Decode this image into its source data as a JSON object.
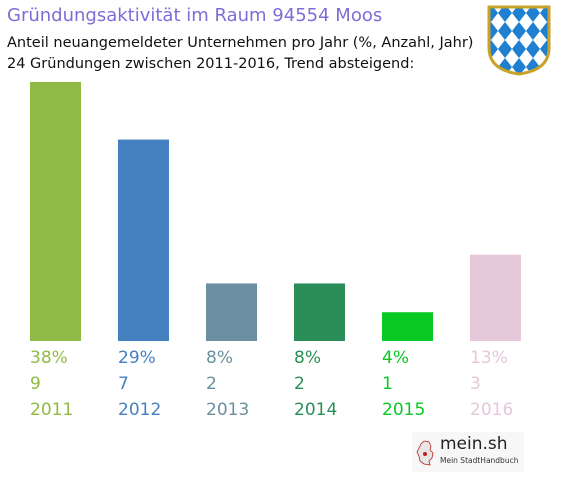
{
  "header": {
    "title": "Gründungsaktivität im Raum 94554 Moos",
    "subtitle_line1": "Anteil neuangemeldeter Unternehmen pro Jahr (%, Anzahl, Jahr)",
    "subtitle_line2": "24 Gründungen zwischen 2011-2016, Trend absteigend:"
  },
  "logo": {
    "name": "mein.sh",
    "tagline": "Mein StadtHandbuch"
  },
  "chart_data": {
    "type": "bar",
    "categories": [
      "2011",
      "2012",
      "2013",
      "2014",
      "2015",
      "2016"
    ],
    "percent_labels": [
      "38%",
      "29%",
      "8%",
      "8%",
      "4%",
      "13%"
    ],
    "values": [
      9,
      7,
      2,
      2,
      1,
      3
    ],
    "colors": [
      "#8fba45",
      "#4580c1",
      "#6b8fa0",
      "#2a8e58",
      "#0ac925",
      "#e6c8db"
    ],
    "ylim": [
      0,
      9
    ],
    "title": "Gründungsaktivität im Raum 94554 Moos",
    "grid": false,
    "legend": "none"
  }
}
